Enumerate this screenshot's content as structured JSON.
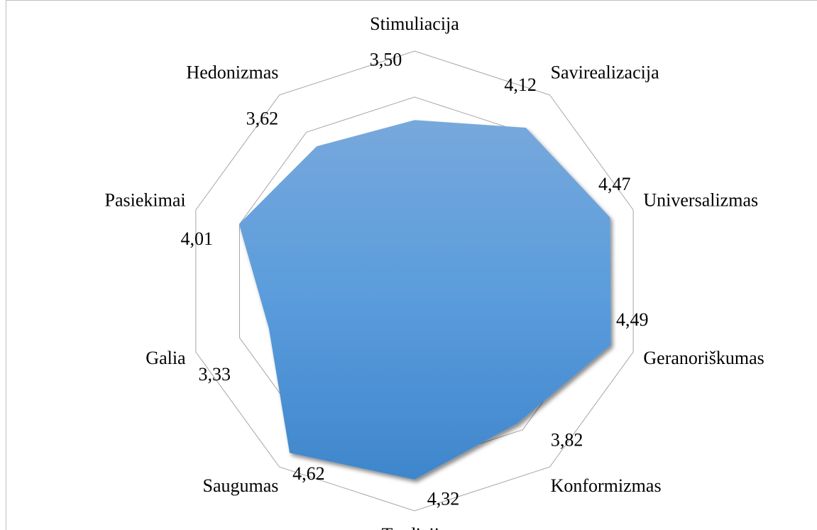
{
  "chart_data": {
    "type": "radar",
    "categories": [
      "Stimuliacija",
      "Savirealizacija",
      "Universalizmas",
      "Geranoriškumas",
      "Konformizmas",
      "Tradicija",
      "Saugumas",
      "Galia",
      "Pasiekimai",
      "Hedonizmas"
    ],
    "values": [
      3.5,
      4.12,
      4.47,
      4.49,
      3.82,
      4.32,
      4.62,
      3.33,
      4.01,
      3.62
    ],
    "value_labels": [
      "3,50",
      "4,12",
      "4,47",
      "4,49",
      "3,82",
      "4,32",
      "4,62",
      "3,33",
      "4,01",
      "3,62"
    ],
    "ylim": [
      0,
      5
    ],
    "yticks": [
      0,
      1,
      2,
      3,
      4,
      5
    ],
    "grid": true,
    "color": "#5b9bd5"
  }
}
